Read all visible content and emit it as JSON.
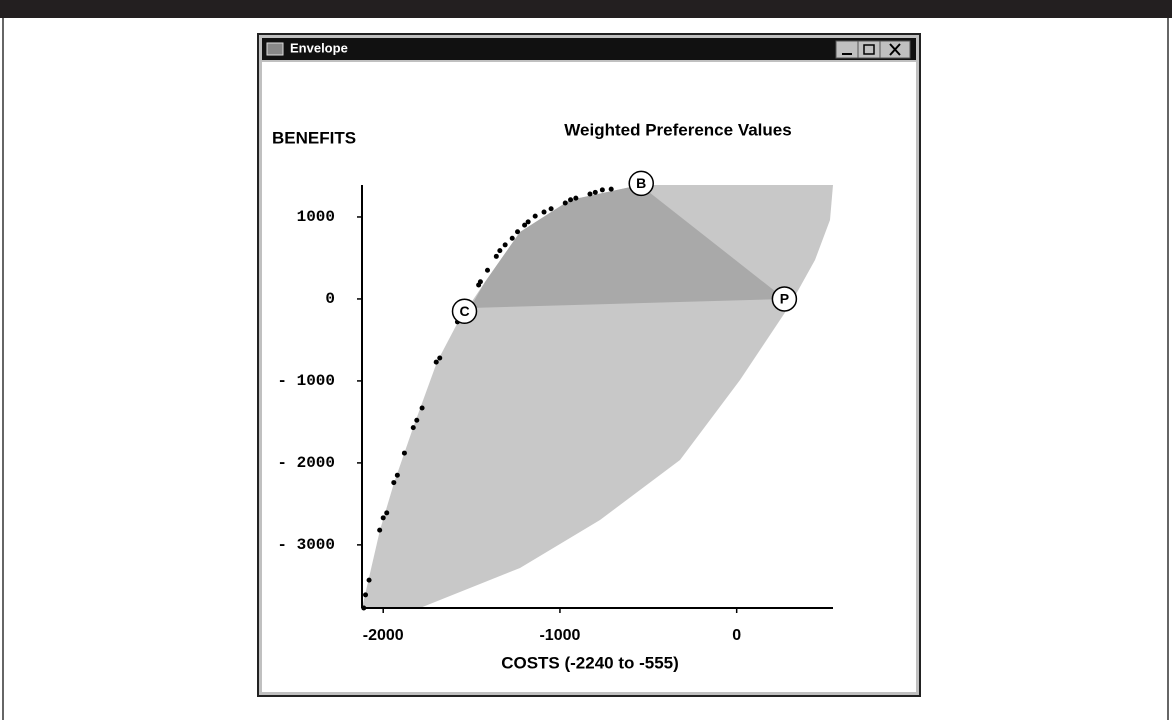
{
  "window": {
    "title": "Envelope"
  },
  "chart_data": {
    "type": "scatter",
    "title": "Weighted Preference Values",
    "y_label": "BENEFITS",
    "x_label": "COSTS  (-2240 to -555)",
    "color": "#000000",
    "x": [
      -2110,
      -2100,
      -2080,
      -2020,
      -2000,
      -1980,
      -1940,
      -1920,
      -1880,
      -1830,
      -1810,
      -1780,
      -1700,
      -1680,
      -1580,
      -1570,
      -1460,
      -1450,
      -1410,
      -1360,
      -1340,
      -1310,
      -1270,
      -1240,
      -1200,
      -1180,
      -1140,
      -1090,
      -1050,
      -970,
      -940,
      -910,
      -830,
      -800,
      -760,
      -710
    ],
    "y": [
      -3770,
      -3610,
      -3430,
      -2820,
      -2670,
      -2610,
      -2240,
      -2150,
      -1880,
      -1570,
      -1480,
      -1330,
      -770,
      -720,
      -280,
      -230,
      170,
      210,
      350,
      520,
      590,
      660,
      740,
      820,
      900,
      940,
      1010,
      1060,
      1100,
      1170,
      1210,
      1230,
      1280,
      1300,
      1330,
      1340
    ],
    "annotations": [
      {
        "label": "B",
        "x": -540,
        "y": 1410
      },
      {
        "label": "C",
        "x": -1540,
        "y": -150
      },
      {
        "label": "P",
        "x": 270,
        "y": 0
      }
    ],
    "xlim": [
      -2120,
      545
    ],
    "ylim": [
      -3770,
      1390
    ],
    "xticks": [
      -2000,
      -1000,
      0
    ],
    "yticks": [
      {
        "value": -3000,
        "label": "- 3000"
      },
      {
        "value": -2000,
        "label": "- 2000"
      },
      {
        "value": -1000,
        "label": "- 1000"
      },
      0,
      1000
    ]
  }
}
